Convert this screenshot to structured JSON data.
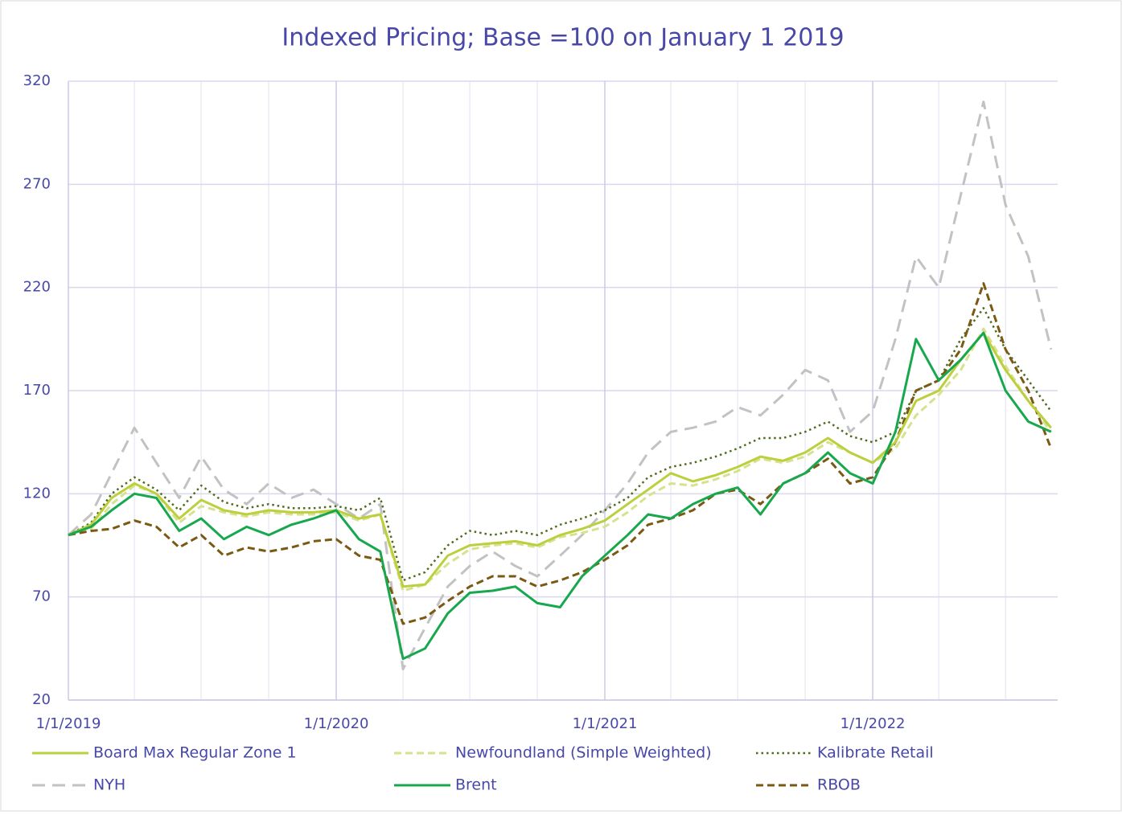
{
  "chart_data": {
    "type": "line",
    "title": "Indexed Pricing; Base =100 on January 1 2019",
    "x": [
      "1/1/2019",
      "2/1/2019",
      "3/1/2019",
      "4/1/2019",
      "5/1/2019",
      "6/1/2019",
      "7/1/2019",
      "8/1/2019",
      "9/1/2019",
      "10/1/2019",
      "11/1/2019",
      "12/1/2019",
      "1/1/2020",
      "2/1/2020",
      "3/1/2020",
      "4/1/2020",
      "5/1/2020",
      "6/1/2020",
      "7/1/2020",
      "8/1/2020",
      "9/1/2020",
      "10/1/2020",
      "11/1/2020",
      "12/1/2020",
      "1/1/2021",
      "2/1/2021",
      "3/1/2021",
      "4/1/2021",
      "5/1/2021",
      "6/1/2021",
      "7/1/2021",
      "8/1/2021",
      "9/1/2021",
      "10/1/2021",
      "11/1/2021",
      "12/1/2021",
      "1/1/2022",
      "2/1/2022",
      "3/1/2022",
      "4/1/2022",
      "5/1/2022",
      "6/1/2022",
      "7/1/2022",
      "8/1/2022",
      "9/1/2022"
    ],
    "series": [
      {
        "name": "Board Max Regular Zone 1",
        "color": "#bccf3c",
        "dash": "solid",
        "width": 3,
        "values": [
          100,
          105,
          118,
          125,
          120,
          108,
          117,
          112,
          110,
          112,
          111,
          111,
          112,
          108,
          110,
          75,
          76,
          90,
          95,
          96,
          97,
          95,
          100,
          103,
          107,
          115,
          122,
          130,
          126,
          129,
          133,
          138,
          136,
          140,
          147,
          140,
          135,
          145,
          165,
          170,
          185,
          198,
          180,
          165,
          152
        ]
      },
      {
        "name": "Newfoundland (Simple Weighted)",
        "color": "#d6e28e",
        "dash": "dashed",
        "width": 3,
        "values": [
          100,
          103,
          115,
          124,
          120,
          106,
          114,
          111,
          109,
          111,
          110,
          110,
          111,
          107,
          110,
          73,
          76,
          86,
          93,
          95,
          96,
          94,
          99,
          101,
          104,
          111,
          119,
          125,
          124,
          127,
          131,
          137,
          135,
          138,
          145,
          140,
          135,
          142,
          158,
          168,
          180,
          200,
          182,
          165,
          150
        ]
      },
      {
        "name": "Kalibrate Retail",
        "color": "#4f6b1c",
        "dash": "dotted",
        "width": 2.5,
        "values": [
          100,
          106,
          120,
          128,
          122,
          112,
          124,
          116,
          113,
          115,
          113,
          113,
          114,
          112,
          118,
          78,
          82,
          95,
          102,
          100,
          102,
          100,
          105,
          108,
          112,
          118,
          128,
          133,
          135,
          138,
          142,
          147,
          147,
          150,
          155,
          148,
          145,
          150,
          170,
          175,
          195,
          210,
          190,
          175,
          160
        ]
      },
      {
        "name": "NYH",
        "color": "#c2c2c2",
        "dash": "dashed-long",
        "width": 3,
        "values": [
          100,
          110,
          130,
          152,
          135,
          118,
          138,
          122,
          115,
          125,
          118,
          122,
          115,
          108,
          115,
          35,
          55,
          75,
          85,
          92,
          85,
          80,
          90,
          100,
          112,
          125,
          140,
          150,
          152,
          155,
          162,
          158,
          168,
          180,
          175,
          150,
          160,
          195,
          235,
          220,
          265,
          310,
          260,
          235,
          190
        ]
      },
      {
        "name": "Brent",
        "color": "#17a84e",
        "dash": "solid",
        "width": 3,
        "values": [
          100,
          104,
          112,
          120,
          118,
          102,
          108,
          98,
          104,
          100,
          105,
          108,
          112,
          98,
          92,
          40,
          45,
          62,
          72,
          73,
          75,
          67,
          65,
          80,
          90,
          100,
          110,
          108,
          115,
          120,
          123,
          110,
          125,
          130,
          140,
          130,
          125,
          150,
          195,
          175,
          185,
          198,
          170,
          155,
          150
        ]
      },
      {
        "name": "RBOB",
        "color": "#7a5a12",
        "dash": "dashed",
        "width": 3,
        "values": [
          100,
          102,
          103,
          107,
          104,
          94,
          100,
          90,
          94,
          92,
          94,
          97,
          98,
          90,
          88,
          57,
          60,
          68,
          75,
          80,
          80,
          75,
          78,
          82,
          88,
          95,
          105,
          108,
          112,
          120,
          122,
          115,
          125,
          130,
          137,
          125,
          128,
          145,
          170,
          175,
          190,
          222,
          190,
          170,
          142
        ]
      }
    ],
    "xlim": [
      "1/1/2019",
      "9/10/2022"
    ],
    "xticks": [
      "1/1/2019",
      "1/1/2020",
      "1/1/2021",
      "1/1/2022"
    ],
    "x_minor_grid": [
      "4/1/2019",
      "7/1/2019",
      "10/1/2019",
      "4/1/2020",
      "7/1/2020",
      "10/1/2020",
      "4/1/2021",
      "7/1/2021",
      "10/1/2021",
      "4/1/2022",
      "7/1/2022"
    ],
    "ylim": [
      20,
      320
    ],
    "yticks": [
      20,
      70,
      120,
      170,
      220,
      270,
      320
    ],
    "grid": true,
    "legend": "bottom"
  }
}
